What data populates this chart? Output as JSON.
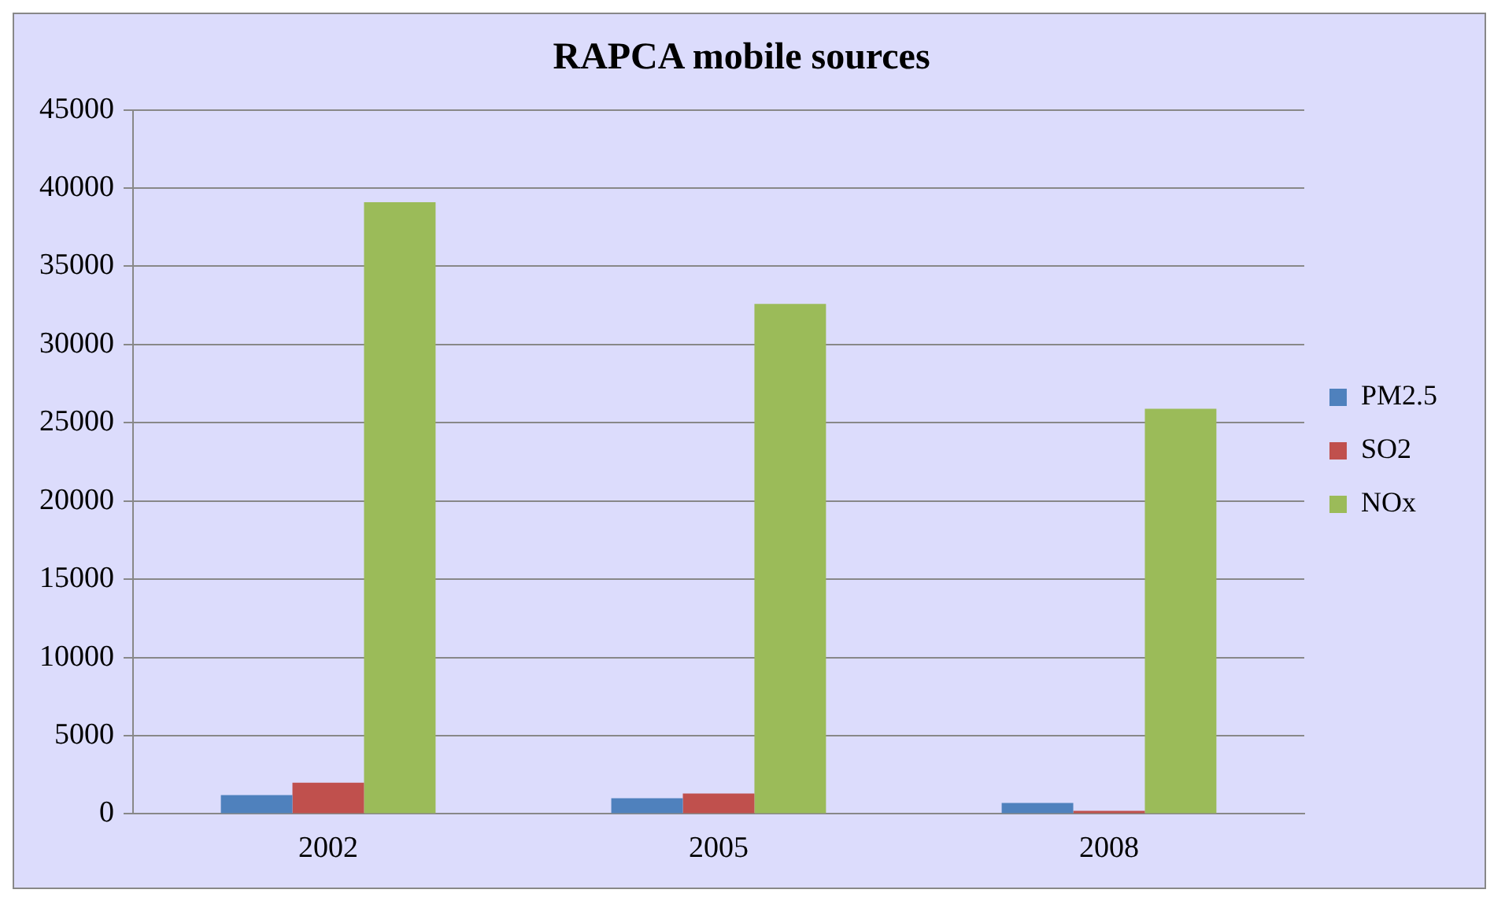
{
  "chart_data": {
    "type": "bar",
    "title": "RAPCA mobile sources",
    "categories": [
      "2002",
      "2005",
      "2008"
    ],
    "series": [
      {
        "name": "PM2.5",
        "color": "#4f81bd",
        "values": [
          1200,
          1000,
          700
        ]
      },
      {
        "name": "SO2",
        "color": "#c0504d",
        "values": [
          2000,
          1300,
          200
        ]
      },
      {
        "name": "NOx",
        "color": "#9bbb59",
        "values": [
          39100,
          32600,
          25900
        ]
      }
    ],
    "ylim": [
      0,
      45000
    ],
    "yticks": [
      0,
      5000,
      10000,
      15000,
      20000,
      25000,
      30000,
      35000,
      40000,
      45000
    ],
    "grid": "y",
    "legend": "right"
  }
}
